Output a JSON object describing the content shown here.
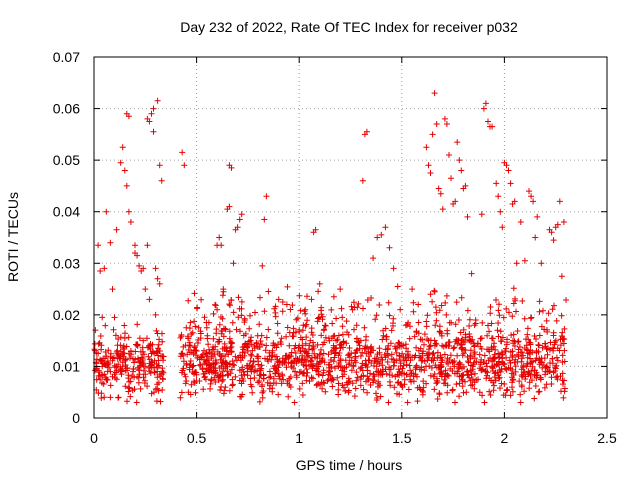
{
  "chart_data": {
    "type": "scatter",
    "title": "Day 232 of 2022, Rate Of TEC Index for receiver p032",
    "xlabel": "GPS time / hours",
    "ylabel": "ROTI / TECUs",
    "xlim": [
      0,
      2.5
    ],
    "ylim": [
      0,
      0.07
    ],
    "xticks": [
      0,
      0.5,
      1,
      1.5,
      2,
      2.5
    ],
    "yticks": [
      0,
      0.01,
      0.02,
      0.03,
      0.04,
      0.05,
      0.06,
      0.07
    ],
    "xtick_labels": [
      "0",
      "0.5",
      "1",
      "1.5",
      "2",
      "2.5"
    ],
    "ytick_labels": [
      "0",
      "0.01",
      "0.02",
      "0.03",
      "0.04",
      "0.05",
      "0.06",
      "0.07"
    ],
    "grid": true,
    "marker": "+",
    "color": "#e60000",
    "series": [
      {
        "name": "p032",
        "points": [
          [
            0.01,
            0.0095
          ],
          [
            0.02,
            0.0335
          ],
          [
            0.02,
            0.0125
          ],
          [
            0.03,
            0.0285
          ],
          [
            0.03,
            0.0075
          ],
          [
            0.04,
            0.0195
          ],
          [
            0.05,
            0.0085
          ],
          [
            0.05,
            0.029
          ],
          [
            0.06,
            0.04
          ],
          [
            0.07,
            0.0105
          ],
          [
            0.08,
            0.004
          ],
          [
            0.08,
            0.034
          ],
          [
            0.09,
            0.025
          ],
          [
            0.1,
            0.0085
          ],
          [
            0.1,
            0.0195
          ],
          [
            0.11,
            0.0365
          ],
          [
            0.12,
            0.012
          ],
          [
            0.12,
            0.004
          ],
          [
            0.13,
            0.0495
          ],
          [
            0.14,
            0.0525
          ],
          [
            0.14,
            0.01
          ],
          [
            0.15,
            0.048
          ],
          [
            0.15,
            0.0155
          ],
          [
            0.16,
            0.059
          ],
          [
            0.16,
            0.045
          ],
          [
            0.17,
            0.0585
          ],
          [
            0.17,
            0.04
          ],
          [
            0.18,
            0.013
          ],
          [
            0.18,
            0.038
          ],
          [
            0.19,
            0.009
          ],
          [
            0.2,
            0.0335
          ],
          [
            0.2,
            0.032
          ],
          [
            0.21,
            0.0315
          ],
          [
            0.22,
            0.0295
          ],
          [
            0.22,
            0.011
          ],
          [
            0.23,
            0.0285
          ],
          [
            0.24,
            0.029
          ],
          [
            0.25,
            0.0085
          ],
          [
            0.25,
            0.025
          ],
          [
            0.26,
            0.0335
          ],
          [
            0.26,
            0.058
          ],
          [
            0.27,
            0.0575
          ],
          [
            0.27,
            0.023
          ],
          [
            0.28,
            0.059
          ],
          [
            0.28,
            0.0125
          ],
          [
            0.29,
            0.06
          ],
          [
            0.29,
            0.0555
          ],
          [
            0.3,
            0.02
          ],
          [
            0.3,
            0.029
          ],
          [
            0.31,
            0.0615
          ],
          [
            0.31,
            0.027
          ],
          [
            0.32,
            0.049
          ],
          [
            0.32,
            0.026
          ],
          [
            0.33,
            0.046
          ],
          [
            0.33,
            0.0085
          ],
          [
            0.04,
            0.01
          ],
          [
            0.06,
            0.012
          ],
          [
            0.09,
            0.008
          ],
          [
            0.11,
            0.01
          ],
          [
            0.13,
            0.0115
          ],
          [
            0.19,
            0.0115
          ],
          [
            0.21,
            0.008
          ],
          [
            0.24,
            0.015
          ],
          [
            0.28,
            0.011
          ],
          [
            0.31,
            0.013
          ],
          [
            0.43,
            0.0515
          ],
          [
            0.44,
            0.049
          ],
          [
            0.45,
            0.0175
          ],
          [
            0.46,
            0.005
          ],
          [
            0.47,
            0.0185
          ],
          [
            0.48,
            0.01
          ],
          [
            0.5,
            0.013
          ],
          [
            0.52,
            0.0155
          ],
          [
            0.54,
            0.008
          ],
          [
            0.56,
            0.0185
          ],
          [
            0.58,
            0.012
          ],
          [
            0.6,
            0.021
          ],
          [
            0.6,
            0.0335
          ],
          [
            0.61,
            0.035
          ],
          [
            0.62,
            0.0335
          ],
          [
            0.63,
            0.025
          ],
          [
            0.64,
            0.006
          ],
          [
            0.65,
            0.0405
          ],
          [
            0.66,
            0.041
          ],
          [
            0.66,
            0.049
          ],
          [
            0.67,
            0.0485
          ],
          [
            0.68,
            0.03
          ],
          [
            0.69,
            0.0365
          ],
          [
            0.7,
            0.037
          ],
          [
            0.71,
            0.0385
          ],
          [
            0.72,
            0.0395
          ],
          [
            0.73,
            0.016
          ],
          [
            0.75,
            0.013
          ],
          [
            0.78,
            0.009
          ],
          [
            0.8,
            0.011
          ],
          [
            0.82,
            0.0295
          ],
          [
            0.83,
            0.0385
          ],
          [
            0.84,
            0.043
          ],
          [
            0.86,
            0.008
          ],
          [
            0.88,
            0.014
          ],
          [
            0.9,
            0.023
          ],
          [
            0.92,
            0.0225
          ],
          [
            0.94,
            0.022
          ],
          [
            0.96,
            0.012
          ],
          [
            0.98,
            0.009
          ],
          [
            1.0,
            0.014
          ],
          [
            1.02,
            0.018
          ],
          [
            1.04,
            0.0125
          ],
          [
            1.06,
            0.023
          ],
          [
            1.07,
            0.036
          ],
          [
            1.08,
            0.0365
          ],
          [
            1.1,
            0.026
          ],
          [
            1.12,
            0.017
          ],
          [
            1.15,
            0.009
          ],
          [
            1.18,
            0.015
          ],
          [
            1.2,
            0.025
          ],
          [
            1.22,
            0.009
          ],
          [
            1.24,
            0.005
          ],
          [
            1.26,
            0.021
          ],
          [
            1.28,
            0.018
          ],
          [
            1.3,
            0.015
          ],
          [
            1.31,
            0.046
          ],
          [
            1.32,
            0.055
          ],
          [
            1.33,
            0.0555
          ],
          [
            1.34,
            0.012
          ],
          [
            1.36,
            0.031
          ],
          [
            1.38,
            0.035
          ],
          [
            1.4,
            0.0355
          ],
          [
            1.42,
            0.037
          ],
          [
            1.44,
            0.033
          ],
          [
            1.46,
            0.029
          ],
          [
            1.48,
            0.0255
          ],
          [
            1.5,
            0.014
          ],
          [
            1.52,
            0.018
          ],
          [
            1.55,
            0.025
          ],
          [
            1.58,
            0.022
          ],
          [
            1.6,
            0.0125
          ],
          [
            1.62,
            0.0525
          ],
          [
            1.63,
            0.049
          ],
          [
            1.64,
            0.0475
          ],
          [
            1.65,
            0.055
          ],
          [
            1.66,
            0.063
          ],
          [
            1.67,
            0.057
          ],
          [
            1.68,
            0.0445
          ],
          [
            1.69,
            0.0435
          ],
          [
            1.7,
            0.0405
          ],
          [
            1.71,
            0.058
          ],
          [
            1.72,
            0.057
          ],
          [
            1.73,
            0.051
          ],
          [
            1.74,
            0.0465
          ],
          [
            1.75,
            0.0415
          ],
          [
            1.76,
            0.042
          ],
          [
            1.77,
            0.0535
          ],
          [
            1.78,
            0.05
          ],
          [
            1.79,
            0.048
          ],
          [
            1.8,
            0.0445
          ],
          [
            1.81,
            0.045
          ],
          [
            1.82,
            0.039
          ],
          [
            1.84,
            0.028
          ],
          [
            1.86,
            0.019
          ],
          [
            1.88,
            0.005
          ],
          [
            1.89,
            0.0395
          ],
          [
            1.9,
            0.06
          ],
          [
            1.91,
            0.061
          ],
          [
            1.92,
            0.0575
          ],
          [
            1.93,
            0.0565
          ],
          [
            1.94,
            0.0565
          ],
          [
            1.95,
            0.0145
          ],
          [
            1.96,
            0.0455
          ],
          [
            1.97,
            0.043
          ],
          [
            1.98,
            0.04
          ],
          [
            1.99,
            0.037
          ],
          [
            2.0,
            0.0495
          ],
          [
            2.01,
            0.049
          ],
          [
            2.02,
            0.048
          ],
          [
            2.03,
            0.0455
          ],
          [
            2.04,
            0.0415
          ],
          [
            2.05,
            0.042
          ],
          [
            2.06,
            0.03
          ],
          [
            2.08,
            0.038
          ],
          [
            2.1,
            0.0305
          ],
          [
            2.12,
            0.044
          ],
          [
            2.13,
            0.043
          ],
          [
            2.14,
            0.042
          ],
          [
            2.15,
            0.035
          ],
          [
            2.16,
            0.039
          ],
          [
            2.18,
            0.03
          ],
          [
            2.2,
            0.009
          ],
          [
            2.22,
            0.0365
          ],
          [
            2.23,
            0.036
          ],
          [
            2.24,
            0.0345
          ],
          [
            2.25,
            0.037
          ],
          [
            2.26,
            0.0375
          ],
          [
            2.27,
            0.042
          ],
          [
            2.28,
            0.0275
          ],
          [
            2.29,
            0.038
          ]
        ],
        "dense_band": {
          "x_segments": [
            [
              0.0,
              0.34
            ],
            [
              0.42,
              2.3
            ]
          ],
          "y_center": 0.0105,
          "y_spread": 0.0065,
          "approx_points": 1500
        },
        "mid_band": {
          "x_segments": [
            [
              0.45,
              2.3
            ]
          ],
          "y_center": 0.019,
          "y_spread": 0.006,
          "approx_points": 250
        }
      }
    ]
  }
}
